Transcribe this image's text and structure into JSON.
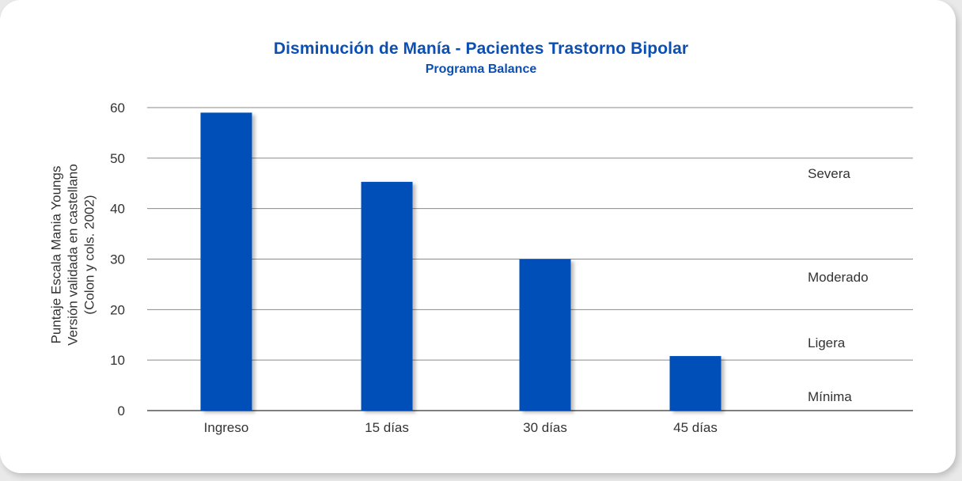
{
  "chart_data": {
    "type": "bar",
    "title": "Disminución de Manía - Pacientes Trastorno Bipolar",
    "subtitle": "Programa Balance",
    "ylabel_lines": [
      "Puntaje Escala Mania Youngs",
      "Versión validada en castellano",
      "(Colon y cols. 2002)"
    ],
    "xlabel": "",
    "categories": [
      "Ingreso",
      "15 días",
      "30 días",
      "45 días"
    ],
    "values": [
      59,
      45.3,
      30,
      10.8
    ],
    "ylim": [
      0,
      60
    ],
    "yticks": [
      0,
      10,
      20,
      30,
      40,
      50,
      60
    ],
    "grid": true,
    "bar_color": "#0150b8",
    "title_color": "#0b4fb3",
    "zones": [
      {
        "label": "Severa",
        "value": 47
      },
      {
        "label": "Moderado",
        "value": 26.5
      },
      {
        "label": "Ligera",
        "value": 13.5
      },
      {
        "label": "Mínima",
        "value": 2.8
      }
    ]
  }
}
